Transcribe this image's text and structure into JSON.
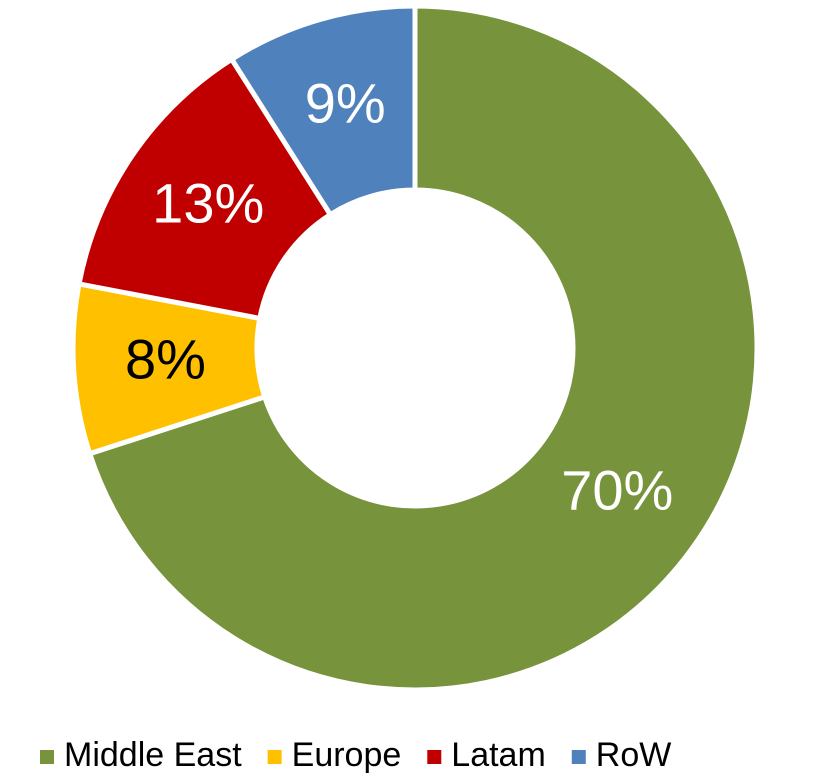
{
  "chart_data": {
    "type": "donut",
    "categories": [
      "Middle East",
      "Europe",
      "Latam",
      "RoW"
    ],
    "values": [
      70,
      8,
      13,
      9
    ],
    "value_labels": [
      "70%",
      "8%",
      "13%",
      "9%"
    ],
    "colors": [
      "#77933c",
      "#ffc000",
      "#c00000",
      "#4f81bd"
    ],
    "legend": "bottom"
  }
}
